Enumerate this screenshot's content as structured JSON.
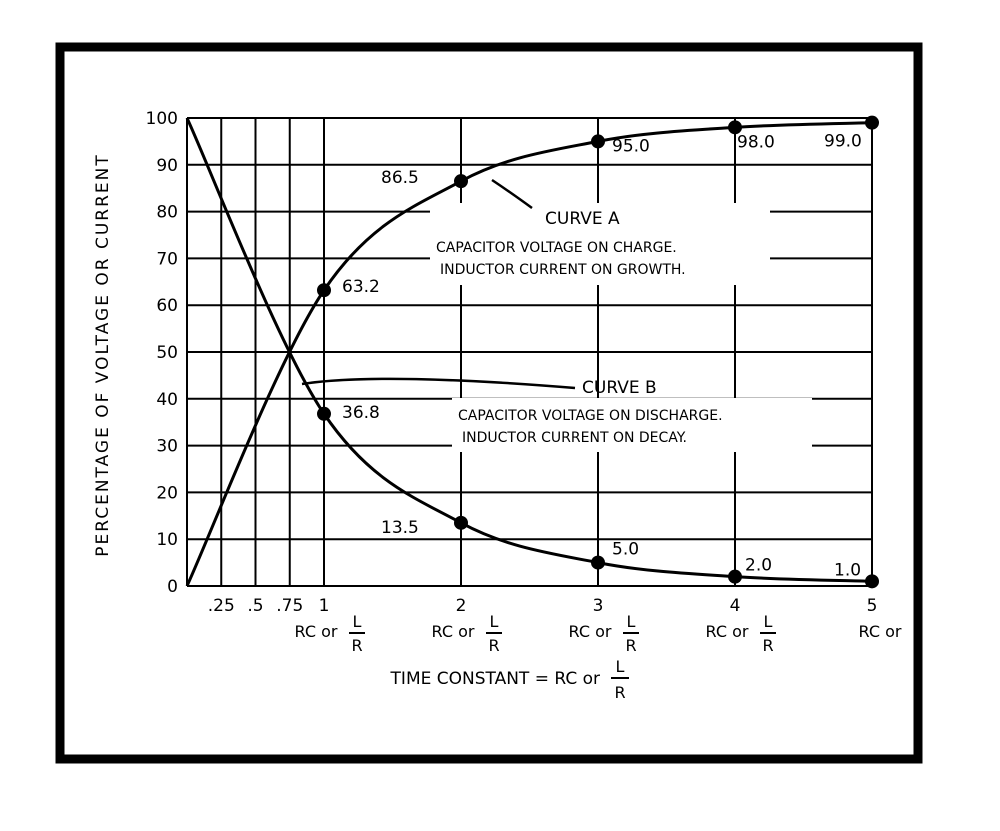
{
  "chart_data": {
    "type": "line",
    "ylabel": "PERCENTAGE OF VOLTAGE OR CURRENT",
    "xlabel": {
      "main": "TIME CONSTANT = RC or",
      "frac_num": "L",
      "frac_den": "R"
    },
    "xlim": [
      0,
      5
    ],
    "ylim": [
      0,
      100
    ],
    "grid": true,
    "y_ticks": [
      "0",
      "10",
      "20",
      "30",
      "40",
      "50",
      "60",
      "70",
      "80",
      "90",
      "100"
    ],
    "x_minor_ticks": [
      {
        "x": 0.25,
        "label": ".25"
      },
      {
        "x": 0.5,
        "label": ".5"
      },
      {
        "x": 0.75,
        "label": ".75"
      }
    ],
    "x_major_ticks": [
      {
        "x": 1,
        "label": "1",
        "rc": "RC or",
        "num": "L",
        "den": "R"
      },
      {
        "x": 2,
        "label": "2",
        "rc": "RC or",
        "num": "L",
        "den": "R"
      },
      {
        "x": 3,
        "label": "3",
        "rc": "RC or",
        "num": "L",
        "den": "R"
      },
      {
        "x": 4,
        "label": "4",
        "rc": "RC or",
        "num": "L",
        "den": "R"
      },
      {
        "x": 5,
        "label": "5",
        "rc": "RC or",
        "num": "",
        "den": ""
      }
    ],
    "series": [
      {
        "name": "CURVE A",
        "description": [
          "CAPACITOR VOLTAGE ON CHARGE.",
          "INDUCTOR CURRENT ON GROWTH."
        ],
        "points": [
          {
            "x": 1,
            "y": 63.2,
            "label": "63.2"
          },
          {
            "x": 2,
            "y": 86.5,
            "label": "86.5"
          },
          {
            "x": 3,
            "y": 95.0,
            "label": "95.0"
          },
          {
            "x": 4,
            "y": 98.0,
            "label": "98.0"
          },
          {
            "x": 5,
            "y": 99.0,
            "label": "99.0"
          }
        ]
      },
      {
        "name": "CURVE B",
        "description": [
          "CAPACITOR VOLTAGE ON DISCHARGE.",
          "INDUCTOR CURRENT ON DECAY."
        ],
        "points": [
          {
            "x": 1,
            "y": 36.8,
            "label": "36.8"
          },
          {
            "x": 2,
            "y": 13.5,
            "label": "13.5"
          },
          {
            "x": 3,
            "y": 5.0,
            "label": "5.0"
          },
          {
            "x": 4,
            "y": 2.0,
            "label": "2.0"
          },
          {
            "x": 5,
            "y": 1.0,
            "label": "1.0"
          }
        ]
      }
    ]
  }
}
